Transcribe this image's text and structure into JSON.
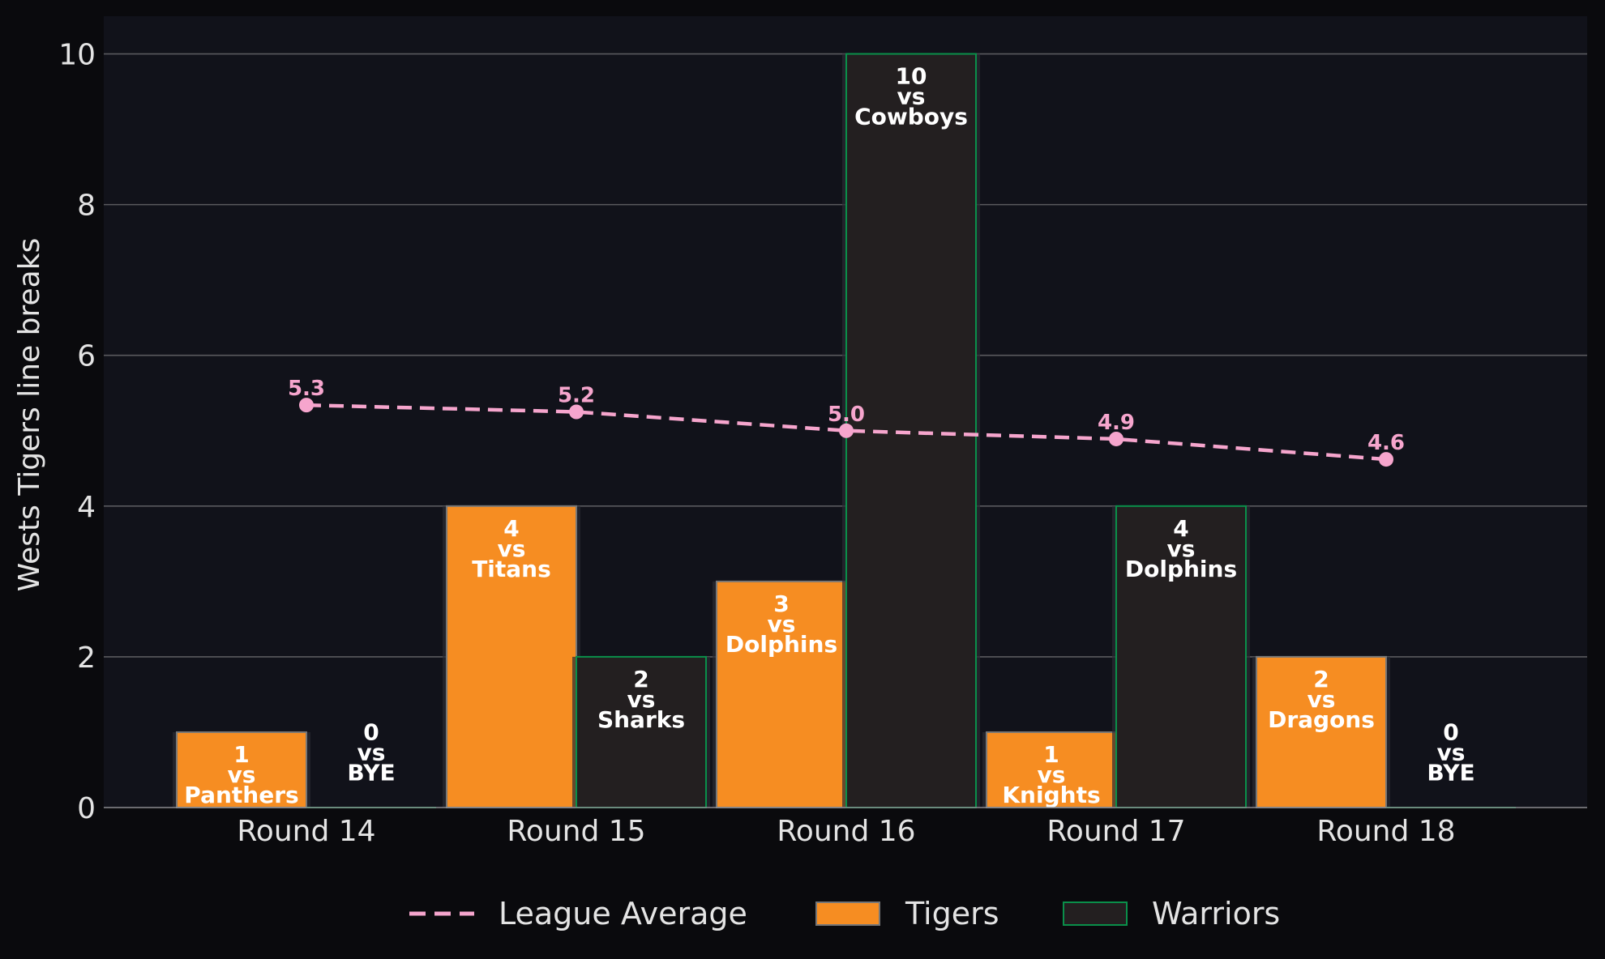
{
  "chart_data": {
    "type": "bar",
    "categories": [
      "Round 14",
      "Round 15",
      "Round 16",
      "Round 17",
      "Round 18"
    ],
    "ylabel": "Wests Tigers line breaks",
    "ylim": [
      0,
      10.5
    ],
    "yticks": [
      0,
      2,
      4,
      6,
      8,
      10
    ],
    "grid": true,
    "series": [
      {
        "name": "Tigers",
        "values": [
          1,
          4,
          3,
          1,
          2
        ],
        "opponents": [
          "Panthers",
          "Titans",
          "Dolphins",
          "Knights",
          "Dragons"
        ],
        "color": "#f68d22"
      },
      {
        "name": "Warriors",
        "values": [
          0,
          2,
          10,
          4,
          0
        ],
        "opponents": [
          "BYE",
          "Sharks",
          "Cowboys",
          "Dolphins",
          "BYE"
        ],
        "color": "#231f20"
      }
    ],
    "line": {
      "name": "League Average",
      "values": [
        5.3,
        5.2,
        5.0,
        4.9,
        4.6
      ],
      "plot_values": [
        5.34,
        5.25,
        5.0,
        4.89,
        4.62
      ],
      "color": "#f6a5cd"
    },
    "vs_word": "vs",
    "legend_position": "bottom-center"
  },
  "colors": {
    "background": "#0a0a0d",
    "plot_background": "#11121a",
    "grid": "#5a5a5e",
    "warriors_edge": "#0a8f4a",
    "tigers_edge": "#777777"
  }
}
